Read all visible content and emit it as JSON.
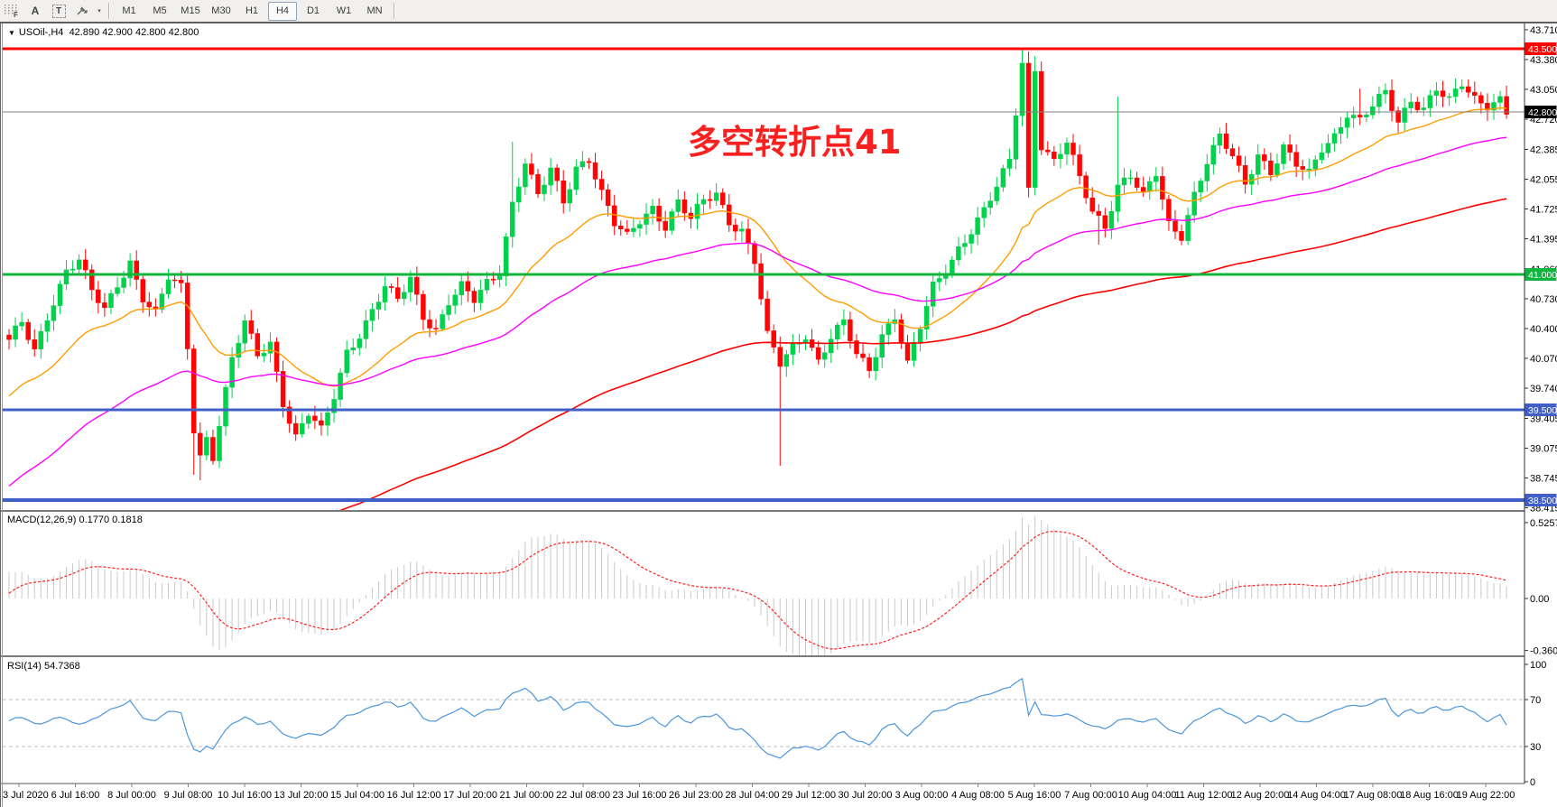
{
  "toolbar": {
    "icon_buttons": [
      {
        "id": "indicators-grid",
        "label": "F"
      },
      {
        "id": "text-label",
        "label": "A"
      },
      {
        "id": "text-object",
        "label": "T"
      },
      {
        "id": "arrange-objects",
        "label": "▾"
      }
    ],
    "timeframes": [
      "M1",
      "M5",
      "M15",
      "M30",
      "H1",
      "H4",
      "D1",
      "W1",
      "MN"
    ],
    "active_timeframe": "H4"
  },
  "legend": {
    "collapser": "▼",
    "symbol": "USOil-,H4",
    "values": "42.890 42.900 42.800 42.800"
  },
  "annotation": {
    "text": "多空转折点41",
    "color": "#fb2020"
  },
  "indicator_labels": {
    "macd": "MACD(12,26,9) 0.1770 0.1818",
    "rsi": "RSI(14) 54.7368"
  },
  "chart_data": {
    "type": "candlestick",
    "symbol": "USOil-",
    "timeframe": "H4",
    "last_ohlc": {
      "open": "42.890",
      "high": "42.900",
      "low": "42.800",
      "close": "42.800"
    },
    "price_axis_ticks": [
      "43.710",
      "43.380",
      "43.050",
      "42.720",
      "42.385",
      "42.055",
      "41.725",
      "41.395",
      "41.060",
      "40.730",
      "40.400",
      "40.070",
      "39.740",
      "39.405",
      "39.075",
      "38.745",
      "38.415"
    ],
    "price_badges": [
      {
        "label": "43.500",
        "price": 43.5,
        "bg": "#ff0000"
      },
      {
        "label": "42.800",
        "price": 42.8,
        "bg": "#000000"
      },
      {
        "label": "41.000",
        "price": 41.0,
        "bg": "#0fb53c"
      },
      {
        "label": "39.500",
        "price": 39.5,
        "bg": "#4060c8"
      },
      {
        "label": "38.500",
        "price": 38.5,
        "bg": "#4060c8"
      }
    ],
    "horizontal_lines": [
      {
        "price": 43.5,
        "color": "#ff0000",
        "width": 3,
        "name": "resistance-43.500"
      },
      {
        "price": 42.8,
        "color": "#808080",
        "width": 1,
        "name": "current-price-42.800"
      },
      {
        "price": 41.0,
        "color": "#0fb53c",
        "width": 3,
        "name": "pivot-41.000"
      },
      {
        "price": 39.5,
        "color": "#4060c8",
        "width": 3,
        "name": "support-39.500"
      },
      {
        "price": 38.5,
        "color": "#4060c8",
        "width": 4,
        "name": "support-38.500"
      }
    ],
    "time_labels": [
      "3 Jul 2020",
      "6 Jul 16:00",
      "8 Jul 00:00",
      "9 Jul 08:00",
      "10 Jul 16:00",
      "13 Jul 20:00",
      "15 Jul 04:00",
      "16 Jul 12:00",
      "17 Jul 20:00",
      "21 Jul 00:00",
      "22 Jul 08:00",
      "23 Jul 16:00",
      "26 Jul 23:00",
      "28 Jul 04:00",
      "29 Jul 12:00",
      "30 Jul 20:00",
      "3 Aug 00:00",
      "4 Aug 08:00",
      "5 Aug 16:00",
      "7 Aug 00:00",
      "10 Aug 04:00",
      "11 Aug 12:00",
      "12 Aug 20:00",
      "14 Aug 04:00",
      "17 Aug 08:00",
      "18 Aug 16:00",
      "19 Aug 22:00"
    ],
    "candles": {
      "count": 236,
      "up_color": "#00d24b",
      "down_color": "#ff0404",
      "close_keyframes": [
        [
          0,
          40.25
        ],
        [
          2,
          40.45
        ],
        [
          4,
          40.15
        ],
        [
          6,
          40.55
        ],
        [
          9,
          41.05
        ],
        [
          11,
          41.15
        ],
        [
          13,
          40.8
        ],
        [
          15,
          40.6
        ],
        [
          17,
          40.9
        ],
        [
          19,
          41.15
        ],
        [
          21,
          40.75
        ],
        [
          23,
          40.55
        ],
        [
          25,
          40.95
        ],
        [
          27,
          40.85
        ],
        [
          28,
          40.2
        ],
        [
          29,
          39.3
        ],
        [
          30,
          39.0
        ],
        [
          31,
          39.2
        ],
        [
          32,
          39.0
        ],
        [
          33,
          39.35
        ],
        [
          35,
          40.05
        ],
        [
          37,
          40.45
        ],
        [
          39,
          40.1
        ],
        [
          41,
          40.25
        ],
        [
          43,
          39.6
        ],
        [
          45,
          39.2
        ],
        [
          47,
          39.45
        ],
        [
          49,
          39.25
        ],
        [
          51,
          39.65
        ],
        [
          53,
          40.15
        ],
        [
          55,
          40.35
        ],
        [
          57,
          40.6
        ],
        [
          59,
          40.85
        ],
        [
          61,
          40.7
        ],
        [
          63,
          40.95
        ],
        [
          65,
          40.55
        ],
        [
          67,
          40.4
        ],
        [
          69,
          40.7
        ],
        [
          71,
          40.85
        ],
        [
          73,
          40.7
        ],
        [
          75,
          40.9
        ],
        [
          77,
          41.05
        ],
        [
          79,
          41.8
        ],
        [
          81,
          42.25
        ],
        [
          83,
          41.85
        ],
        [
          85,
          42.15
        ],
        [
          87,
          41.8
        ],
        [
          89,
          42.2
        ],
        [
          91,
          42.3
        ],
        [
          93,
          41.9
        ],
        [
          95,
          41.55
        ],
        [
          97,
          41.4
        ],
        [
          99,
          41.6
        ],
        [
          101,
          41.75
        ],
        [
          103,
          41.55
        ],
        [
          105,
          41.8
        ],
        [
          107,
          41.6
        ],
        [
          109,
          41.8
        ],
        [
          111,
          41.9
        ],
        [
          113,
          41.6
        ],
        [
          115,
          41.5
        ],
        [
          117,
          41.15
        ],
        [
          119,
          40.3
        ],
        [
          121,
          40.0
        ],
        [
          123,
          40.2
        ],
        [
          125,
          40.35
        ],
        [
          127,
          40.05
        ],
        [
          129,
          40.3
        ],
        [
          131,
          40.45
        ],
        [
          133,
          40.1
        ],
        [
          135,
          39.95
        ],
        [
          137,
          40.35
        ],
        [
          139,
          40.55
        ],
        [
          141,
          40.0
        ],
        [
          143,
          40.4
        ],
        [
          145,
          40.85
        ],
        [
          147,
          41.05
        ],
        [
          149,
          41.3
        ],
        [
          151,
          41.5
        ],
        [
          153,
          41.7
        ],
        [
          155,
          41.95
        ],
        [
          157,
          42.25
        ],
        [
          158,
          42.8
        ],
        [
          159,
          43.35
        ],
        [
          160,
          41.95
        ],
        [
          161,
          43.3
        ],
        [
          162,
          42.45
        ],
        [
          164,
          42.25
        ],
        [
          166,
          42.45
        ],
        [
          168,
          42.05
        ],
        [
          170,
          41.7
        ],
        [
          172,
          41.55
        ],
        [
          174,
          42.0
        ],
        [
          176,
          42.1
        ],
        [
          178,
          41.85
        ],
        [
          180,
          42.1
        ],
        [
          182,
          41.55
        ],
        [
          184,
          41.45
        ],
        [
          186,
          41.9
        ],
        [
          188,
          42.25
        ],
        [
          190,
          42.5
        ],
        [
          192,
          42.3
        ],
        [
          194,
          42.0
        ],
        [
          196,
          42.35
        ],
        [
          198,
          42.15
        ],
        [
          200,
          42.4
        ],
        [
          202,
          42.2
        ],
        [
          204,
          42.1
        ],
        [
          206,
          42.4
        ],
        [
          208,
          42.55
        ],
        [
          210,
          42.8
        ],
        [
          212,
          42.7
        ],
        [
          214,
          42.85
        ],
        [
          216,
          43.0
        ],
        [
          218,
          42.7
        ],
        [
          220,
          42.95
        ],
        [
          222,
          42.85
        ],
        [
          224,
          43.05
        ],
        [
          226,
          42.9
        ],
        [
          228,
          43.1
        ],
        [
          230,
          42.95
        ],
        [
          232,
          42.9
        ],
        [
          234,
          42.95
        ],
        [
          235,
          42.8
        ]
      ],
      "high_overrides": {
        "79": 42.47,
        "159": 43.5,
        "160": 43.47,
        "161": 43.42,
        "174": 42.97,
        "212": 43.06
      },
      "low_overrides": {
        "29": 38.78,
        "30": 38.72,
        "121": 38.88,
        "171": 41.33
      }
    },
    "moving_averages": [
      {
        "name": "ma-fast",
        "color": "#ff9d00",
        "period": 24,
        "seed": 39.6,
        "width": 1.4
      },
      {
        "name": "ma-medium",
        "color": "#ff00ff",
        "period": 60,
        "seed": 38.6,
        "width": 1.4
      },
      {
        "name": "ma-slow",
        "color": "#ff0000",
        "period": 140,
        "seed": 36.4,
        "width": 1.6
      }
    ],
    "macd": {
      "params": [
        12,
        26,
        9
      ],
      "current_value": "0.1770",
      "current_signal": "0.1818",
      "axis_ticks": [
        {
          "label": "0.5257",
          "v": 0.5257
        },
        {
          "label": "0.00",
          "v": 0.0
        },
        {
          "label": "-0.3603",
          "v": -0.3603
        }
      ],
      "bar_color": "#c9c9c9",
      "signal_color": "#ff2020"
    },
    "rsi": {
      "period": 14,
      "current_value": "54.7368",
      "axis_ticks": [
        {
          "label": "100",
          "v": 100
        },
        {
          "label": "70",
          "v": 70
        },
        {
          "label": "30",
          "v": 30
        },
        {
          "label": "0",
          "v": 0
        }
      ],
      "level_lines": [
        70,
        30
      ],
      "line_color": "#4b96dc",
      "level_color": "#bfbfbf"
    }
  }
}
